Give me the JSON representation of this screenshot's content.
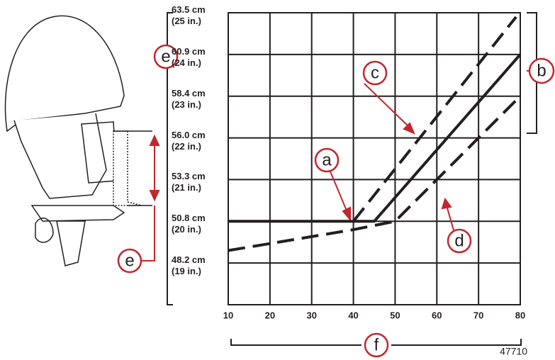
{
  "chart_data": {
    "type": "line",
    "xlim": [
      10,
      80
    ],
    "xticks": [
      10,
      20,
      30,
      40,
      50,
      60,
      70,
      80
    ],
    "ylim": [
      18,
      25
    ],
    "yticks": [
      {
        "value": 25,
        "label": "63.5 cm (25 in.)"
      },
      {
        "value": 24,
        "label": "60.9 cm (24 in.)"
      },
      {
        "value": 23,
        "label": "58.4 cm (23 in.)"
      },
      {
        "value": 22,
        "label": "56.0 cm (22 in.)"
      },
      {
        "value": 21,
        "label": "53.3 cm (21 in.)"
      },
      {
        "value": 20,
        "label": "50.8 cm (20 in.)"
      },
      {
        "value": 19,
        "label": "48.2 cm (19 in.)"
      }
    ],
    "grid": true,
    "series": [
      {
        "color": "#231f20",
        "dashed": false,
        "x": [
          10,
          45,
          80
        ],
        "values": [
          20,
          20,
          24
        ]
      },
      {
        "color": "#231f20",
        "dashed": true,
        "x": [
          40,
          79
        ],
        "values": [
          20,
          24.9
        ]
      },
      {
        "color": "#231f20",
        "dashed": true,
        "x": [
          10,
          40,
          50,
          80
        ],
        "values": [
          19.3,
          19.8,
          20,
          23
        ]
      }
    ],
    "annotations": [
      "a",
      "b",
      "c",
      "d",
      "e",
      "e",
      "f",
      "47710"
    ]
  }
}
